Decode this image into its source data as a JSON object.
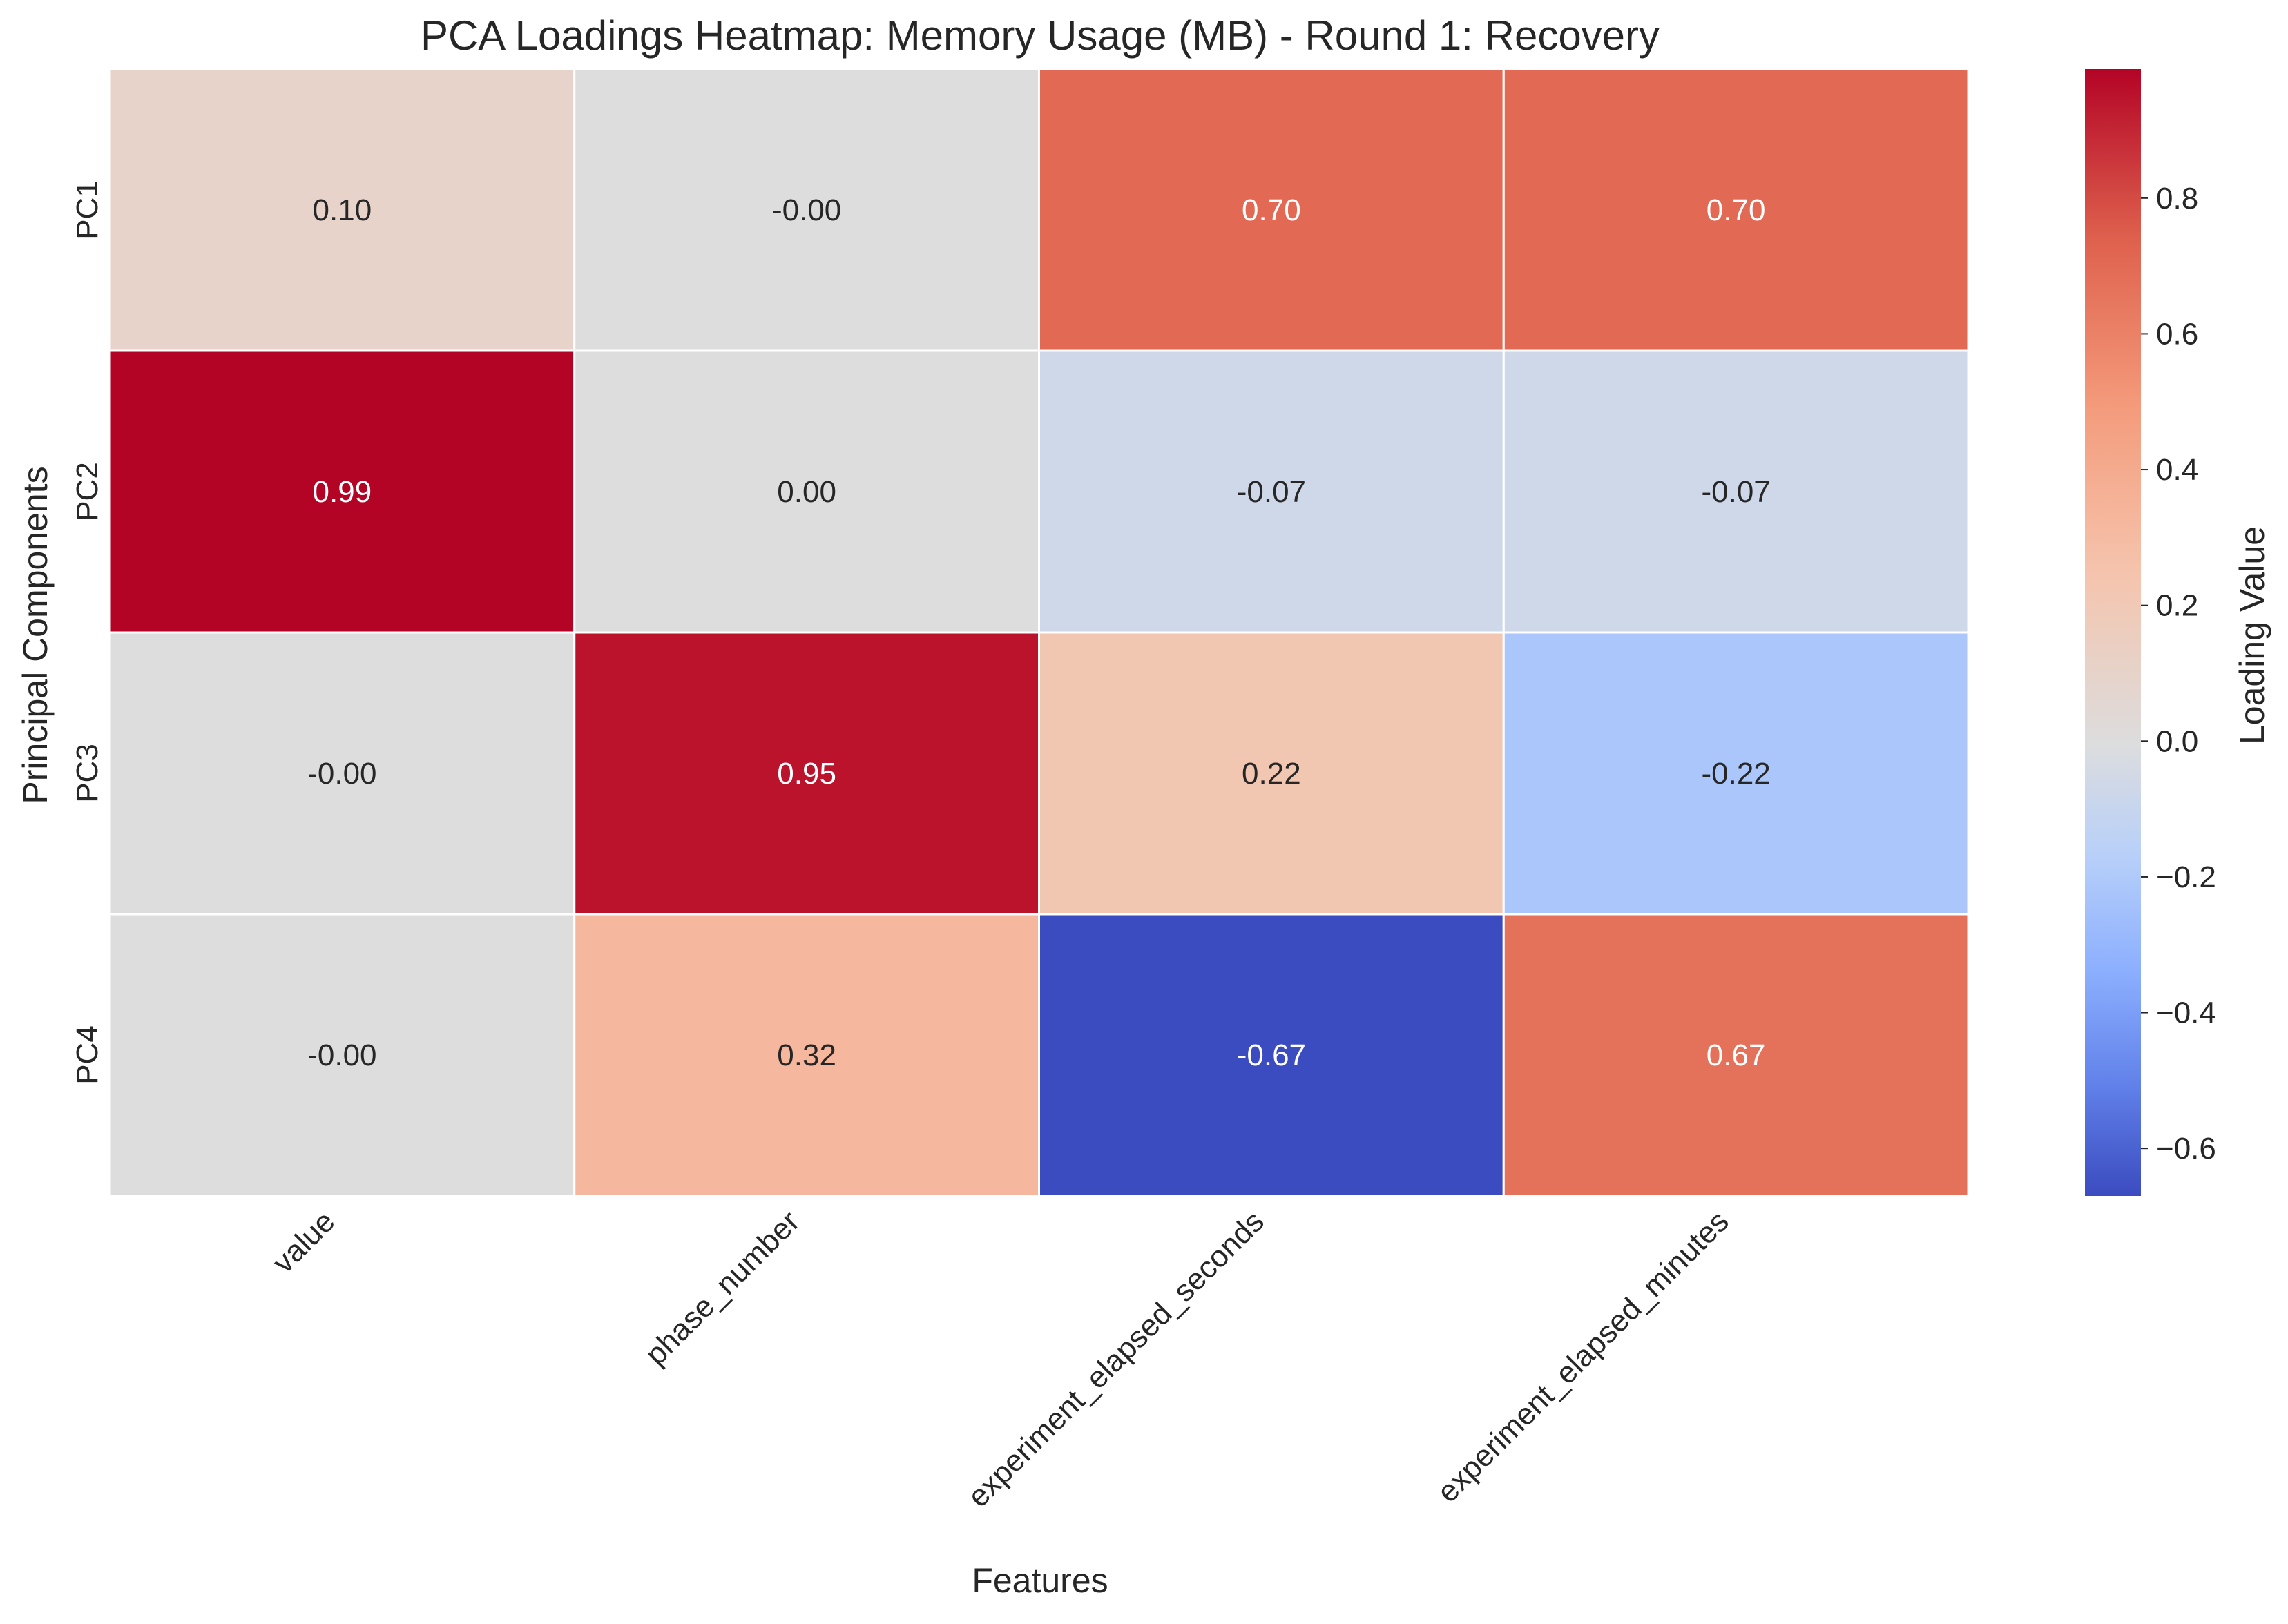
{
  "chart_data": {
    "type": "heatmap",
    "title": "PCA Loadings Heatmap: Memory Usage (MB) - Round 1: Recovery",
    "xlabel": "Features",
    "ylabel": "Principal Components",
    "x_categories": [
      "value",
      "phase_number",
      "experiment_elapsed_seconds",
      "experiment_elapsed_minutes"
    ],
    "y_categories": [
      "PC1",
      "PC2",
      "PC3",
      "PC4"
    ],
    "values": [
      [
        0.1,
        -0.0,
        0.7,
        0.7
      ],
      [
        0.99,
        0.0,
        -0.07,
        -0.07
      ],
      [
        -0.0,
        0.95,
        0.22,
        -0.22
      ],
      [
        -0.0,
        0.32,
        -0.67,
        0.67
      ]
    ],
    "cell_labels": [
      [
        "0.10",
        "-0.00",
        "0.70",
        "0.70"
      ],
      [
        "0.99",
        "0.00",
        "-0.07",
        "-0.07"
      ],
      [
        "-0.00",
        "0.95",
        "0.22",
        "-0.22"
      ],
      [
        "-0.00",
        "0.32",
        "-0.67",
        "0.67"
      ]
    ],
    "colorbar": {
      "label": "Loading Value",
      "range": [
        -0.67,
        0.99
      ],
      "ticks": [
        0.8,
        0.6,
        0.4,
        0.2,
        0.0,
        -0.2,
        -0.4,
        -0.6
      ],
      "tick_labels": [
        "0.8",
        "0.6",
        "0.4",
        "0.2",
        "0.0",
        "−0.2",
        "−0.4",
        "−0.6"
      ],
      "colormap": "coolwarm",
      "center": 0
    }
  }
}
